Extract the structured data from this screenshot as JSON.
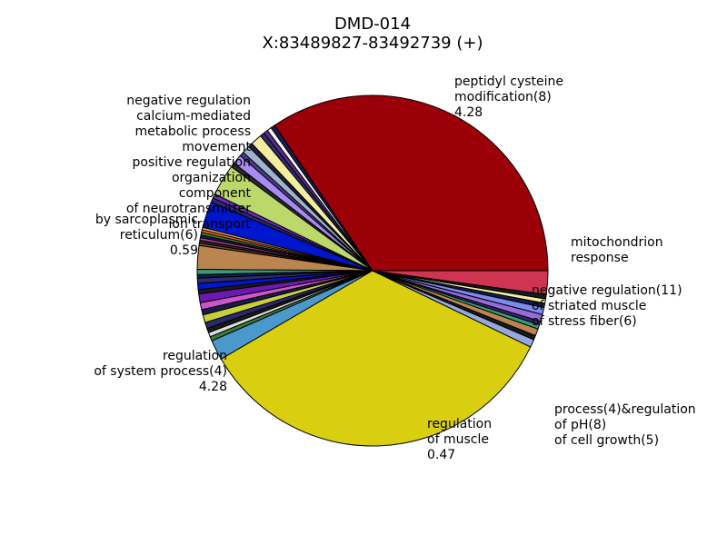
{
  "chart_data": {
    "type": "pie",
    "title": "DMD-014",
    "subtitle": "X:83489827-83492739 (+)",
    "legend": "none",
    "slices": [
      {
        "label": "peptidyl cysteine modification(8)",
        "value": 4.28,
        "color": "#9b0009",
        "show_label": true
      },
      {
        "label": "mitochondrion",
        "value": 0.05,
        "color": "#1d1a4d"
      },
      {
        "label": "response",
        "value": 0.05,
        "color": "#ffffff"
      },
      {
        "label": "",
        "value": 0.05,
        "color": "#5a2b8a"
      },
      {
        "label": "",
        "value": 0.05,
        "color": "#2c2c6e"
      },
      {
        "label": "",
        "value": 0.13,
        "color": "#f2eea0"
      },
      {
        "label": "",
        "value": 0.05,
        "color": "#231a3d"
      },
      {
        "label": "",
        "value": 0.09,
        "color": "#9fb4cc"
      },
      {
        "label": "",
        "value": 0.05,
        "color": "#4a3c8c"
      },
      {
        "label": "",
        "value": 0.11,
        "color": "#a78bee"
      },
      {
        "label": "",
        "value": 0.05,
        "color": "#2a2a2a"
      },
      {
        "label": "negative regulation(11)",
        "value": 0.36,
        "color": "#bcd86b"
      },
      {
        "label": "",
        "value": 0.05,
        "color": "#6b2bbf"
      },
      {
        "label": "of striated muscle",
        "value": 0.05,
        "color": "#2c2c6e"
      },
      {
        "label": "of stress fiber(6)",
        "value": 0.3,
        "color": "#0016cc"
      },
      {
        "label": "",
        "value": 0.03,
        "color": "#d3a870"
      },
      {
        "label": "",
        "value": 0.03,
        "color": "#ff6a00"
      },
      {
        "label": "",
        "value": 0.03,
        "color": "#3a8a3a"
      },
      {
        "label": "",
        "value": 0.03,
        "color": "#1a1a4d"
      },
      {
        "label": "",
        "value": 0.03,
        "color": "#c23e8f"
      },
      {
        "label": "",
        "value": 0.03,
        "color": "#2a2a2a"
      },
      {
        "label": "",
        "value": 0.03,
        "color": "#6d4a2d"
      },
      {
        "label": "",
        "value": 0.27,
        "color": "#bb8550"
      },
      {
        "label": "",
        "value": 0.06,
        "color": "#3a9a7a"
      },
      {
        "label": "",
        "value": 0.04,
        "color": "#1a1a4d"
      },
      {
        "label": "",
        "value": 0.06,
        "color": "#2c2c6e"
      },
      {
        "label": "",
        "value": 0.07,
        "color": "#0016cc"
      },
      {
        "label": "",
        "value": 0.05,
        "color": "#1a1a1a"
      },
      {
        "label": "",
        "value": 0.1,
        "color": "#6a1ab0"
      },
      {
        "label": "",
        "value": 0.08,
        "color": "#cc55cc"
      },
      {
        "label": "",
        "value": 0.06,
        "color": "#1a1a4d"
      },
      {
        "label": "",
        "value": 0.09,
        "color": "#c8d038"
      },
      {
        "label": "",
        "value": 0.07,
        "color": "#2a2a6a"
      },
      {
        "label": "",
        "value": 0.05,
        "color": "#1a1a1a"
      },
      {
        "label": "",
        "value": 0.05,
        "color": "#dcdcdc"
      },
      {
        "label": "",
        "value": 0.05,
        "color": "#3a7a3a"
      },
      {
        "label": "",
        "value": 0.23,
        "color": "#4a98cc"
      },
      {
        "label": "regulation of system process(4)",
        "value": 4.28,
        "color": "#d9cf10",
        "show_label": true
      },
      {
        "label": "",
        "value": 0.09,
        "color": "#95a8e0"
      },
      {
        "label": "",
        "value": 0.05,
        "color": "#1a1a1a"
      },
      {
        "label": "",
        "value": 0.08,
        "color": "#bb8550"
      },
      {
        "label": "",
        "value": 0.05,
        "color": "#3a9a7a"
      },
      {
        "label": "",
        "value": 0.04,
        "color": "#2c2c6e"
      },
      {
        "label": "",
        "value": 0.08,
        "color": "#9a6ad9"
      },
      {
        "label": "",
        "value": 0.08,
        "color": "#7a8aee"
      },
      {
        "label": "",
        "value": 0.05,
        "color": "#1a1a4d"
      },
      {
        "label": "",
        "value": 0.05,
        "color": "#f2eea0"
      },
      {
        "label": "",
        "value": 0.05,
        "color": "#1a1a1a"
      },
      {
        "label": "",
        "value": 0.27,
        "color": "#cf3550"
      }
    ],
    "label_texts": [
      {
        "lines": [
          "peptidyl cysteine",
          "modification(8)",
          "4.28"
        ],
        "anchor": "start"
      },
      {
        "lines": [
          "regulation",
          "of system process(4)",
          "4.28"
        ],
        "anchor": "end"
      },
      {
        "lines": [
          "by sarcoplasmic",
          "reticulum(6)",
          "0.59"
        ],
        "anchor": "end"
      },
      {
        "lines": [
          "negative regulation(11)",
          "of striated muscle",
          "of stress fiber(6)"
        ],
        "anchor": "start"
      },
      {
        "lines": [
          "mitochondrion",
          "response"
        ],
        "anchor": "start"
      },
      {
        "lines": [
          "negative regulation",
          "calcium-mediated",
          "metabolic process",
          "movement",
          "positive regulation",
          "organization",
          "component",
          "of neurotransmitter",
          "ion transport"
        ],
        "anchor": "end"
      },
      {
        "lines": [
          "regulation",
          "of muscle",
          "0.47"
        ],
        "anchor": "start"
      },
      {
        "lines": [
          "process(4)&regulation",
          "of pH(8)",
          "of cell growth(5)"
        ],
        "anchor": "start"
      }
    ]
  }
}
